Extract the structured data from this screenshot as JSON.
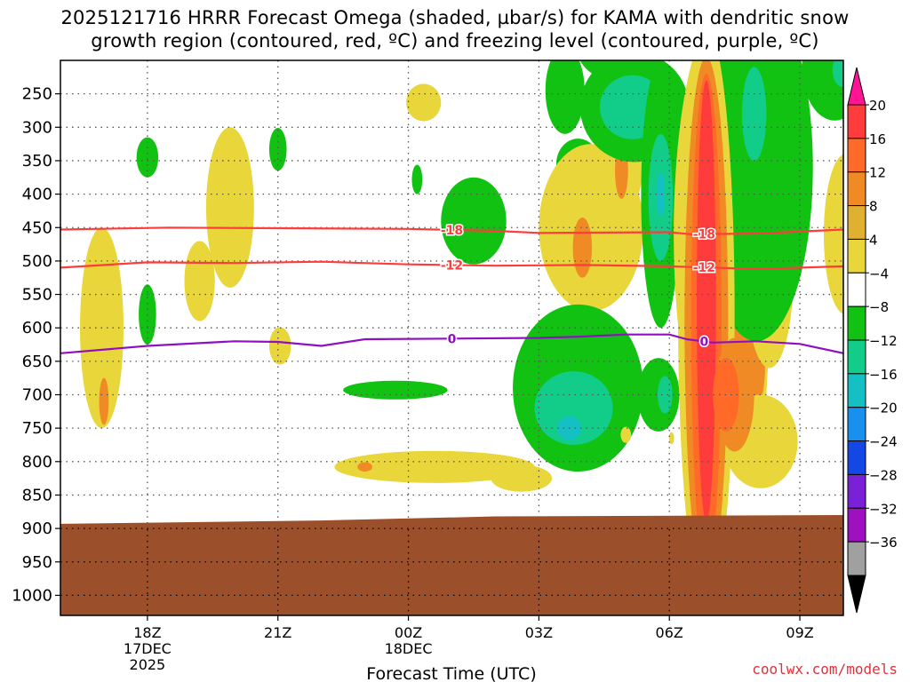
{
  "chart_data": {
    "type": "contour",
    "title_line1": "2025121716 HRRR Forecast Omega (shaded, µbar/s) for KAMA with dendritic snow",
    "title_line2": "growth region (contoured, red, ºC) and freezing level (contoured, purple, ºC)",
    "xlabel": "Forecast Time (UTC)",
    "ylabel": "",
    "credit": "coolwx.com/models",
    "x_range_hours": [
      -2.0,
      16.0
    ],
    "x_ticks": [
      {
        "hour": 0,
        "lines": [
          "18Z",
          "17DEC",
          "2025"
        ]
      },
      {
        "hour": 3,
        "lines": [
          "21Z"
        ]
      },
      {
        "hour": 6,
        "lines": [
          "00Z",
          "18DEC"
        ]
      },
      {
        "hour": 9,
        "lines": [
          "03Z"
        ]
      },
      {
        "hour": 12,
        "lines": [
          "06Z"
        ]
      },
      {
        "hour": 15,
        "lines": [
          "09Z"
        ]
      }
    ],
    "y_range_mb": [
      200,
      1030
    ],
    "y_ticks": [
      250,
      300,
      350,
      400,
      450,
      500,
      550,
      600,
      650,
      700,
      750,
      800,
      850,
      900,
      950,
      1000
    ],
    "ground_level_mb": [
      [
        -2.0,
        893
      ],
      [
        4.0,
        888
      ],
      [
        8.0,
        882
      ],
      [
        16.0,
        880
      ]
    ],
    "colorbar": {
      "labels": [
        "20",
        "16",
        "12",
        "8",
        "4",
        "−4",
        "−8",
        "−12",
        "−16",
        "−20",
        "−24",
        "−28",
        "−32",
        "−36"
      ],
      "colors_top_to_bottom": [
        "#ff1493",
        "#ff3c3c",
        "#ff6a28",
        "#f08a24",
        "#e0b030",
        "#e8d63a",
        "#ffffff",
        "#12c212",
        "#12cd8a",
        "#14c0c4",
        "#1a90ee",
        "#1448e6",
        "#7a20d6",
        "#9e10c0",
        "#a0a0a0",
        "#000000"
      ]
    },
    "contours": [
      {
        "name": "dendritic-top",
        "label": "-18",
        "color": "#ff3c3c",
        "points": [
          [
            -2.0,
            453
          ],
          [
            0.5,
            450
          ],
          [
            3,
            451
          ],
          [
            6,
            452
          ],
          [
            8,
            455
          ],
          [
            9,
            458
          ],
          [
            12,
            457
          ],
          [
            12.5,
            460
          ],
          [
            14,
            459
          ],
          [
            16,
            453
          ]
        ]
      },
      {
        "name": "dendritic-bottom",
        "label": "-12",
        "color": "#ff3c3c",
        "points": [
          [
            -2.0,
            510
          ],
          [
            0,
            502
          ],
          [
            2,
            503
          ],
          [
            4,
            501
          ],
          [
            6,
            505
          ],
          [
            8,
            507
          ],
          [
            10,
            506
          ],
          [
            12,
            508
          ],
          [
            14,
            512
          ],
          [
            16,
            508
          ]
        ]
      },
      {
        "name": "freezing-level",
        "label": "0",
        "color": "#9010c0",
        "points": [
          [
            -2.0,
            638
          ],
          [
            0,
            627
          ],
          [
            2,
            620
          ],
          [
            3,
            621
          ],
          [
            4,
            627
          ],
          [
            5,
            617
          ],
          [
            7,
            616
          ],
          [
            9,
            615
          ],
          [
            10,
            613
          ],
          [
            11,
            610
          ],
          [
            12,
            610
          ],
          [
            12.4,
            617
          ],
          [
            13,
            622
          ],
          [
            14,
            620
          ],
          [
            15,
            624
          ],
          [
            16,
            638
          ]
        ]
      }
    ],
    "omega_regions": [
      {
        "v": 4,
        "cx": -1.05,
        "cy": 600,
        "rx": 0.5,
        "ry": 150
      },
      {
        "v": 8,
        "cx": -1.0,
        "cy": 710,
        "rx": 0.11,
        "ry": 35
      },
      {
        "v": 4,
        "cx": 1.9,
        "cy": 420,
        "rx": 0.55,
        "ry": 120
      },
      {
        "v": 4,
        "cx": 1.2,
        "cy": 530,
        "rx": 0.35,
        "ry": 60
      },
      {
        "v": -4,
        "cx": 0.0,
        "cy": 345,
        "rx": 0.25,
        "ry": 30
      },
      {
        "v": -4,
        "cx": 0.0,
        "cy": 580,
        "rx": 0.2,
        "ry": 45
      },
      {
        "v": -4,
        "cx": 3.0,
        "cy": 333,
        "rx": 0.2,
        "ry": 32
      },
      {
        "v": -4,
        "cx": 6.2,
        "cy": 378,
        "rx": 0.12,
        "ry": 22
      },
      {
        "v": 4,
        "cx": 3.05,
        "cy": 627,
        "rx": 0.25,
        "ry": 28
      },
      {
        "v": 4,
        "cx": 6.35,
        "cy": 263,
        "rx": 0.4,
        "ry": 28
      },
      {
        "v": -4,
        "cx": 5.7,
        "cy": 693,
        "rx": 1.2,
        "ry": 14
      },
      {
        "v": 4,
        "cx": 6.6,
        "cy": 808,
        "rx": 2.3,
        "ry": 24
      },
      {
        "v": 4,
        "cx": 8.6,
        "cy": 825,
        "rx": 0.7,
        "ry": 20
      },
      {
        "v": 8,
        "cx": 5.0,
        "cy": 808,
        "rx": 0.17,
        "ry": 7
      },
      {
        "v": -4,
        "cx": 9.6,
        "cy": 245,
        "rx": 0.45,
        "ry": 65
      },
      {
        "v": -4,
        "cx": 10.5,
        "cy": 150,
        "rx": 0.75,
        "ry": 75
      },
      {
        "v": -4,
        "cx": 7.5,
        "cy": 440,
        "rx": 0.75,
        "ry": 65
      },
      {
        "v": -4,
        "cx": 9.9,
        "cy": 355,
        "rx": 0.5,
        "ry": 38
      },
      {
        "v": -8,
        "cx": 9.9,
        "cy": 355,
        "rx": 0.12,
        "ry": 16
      },
      {
        "v": 4,
        "cx": 10.2,
        "cy": 450,
        "rx": 1.2,
        "ry": 125
      },
      {
        "v": 4,
        "cx": 10.9,
        "cy": 345,
        "rx": 0.5,
        "ry": 90
      },
      {
        "v": 8,
        "cx": 10.9,
        "cy": 365,
        "rx": 0.15,
        "ry": 42
      },
      {
        "v": 8,
        "cx": 10.0,
        "cy": 480,
        "rx": 0.22,
        "ry": 45
      },
      {
        "v": -4,
        "cx": 9.9,
        "cy": 690,
        "rx": 1.5,
        "ry": 125
      },
      {
        "v": -8,
        "cx": 9.8,
        "cy": 720,
        "rx": 0.9,
        "ry": 55
      },
      {
        "v": -12,
        "cx": 9.7,
        "cy": 750,
        "rx": 0.28,
        "ry": 18
      },
      {
        "v": -4,
        "cx": 11.2,
        "cy": 270,
        "rx": 1.25,
        "ry": 82
      },
      {
        "v": -8,
        "cx": 11.15,
        "cy": 270,
        "rx": 0.75,
        "ry": 48
      },
      {
        "v": -4,
        "cx": 11.8,
        "cy": 400,
        "rx": 0.45,
        "ry": 200
      },
      {
        "v": -8,
        "cx": 11.8,
        "cy": 405,
        "rx": 0.28,
        "ry": 95
      },
      {
        "v": -12,
        "cx": 11.8,
        "cy": 400,
        "rx": 0.1,
        "ry": 32
      },
      {
        "v": -4,
        "cx": 11.75,
        "cy": 700,
        "rx": 0.48,
        "ry": 55
      },
      {
        "v": -8,
        "cx": 11.9,
        "cy": 700,
        "rx": 0.17,
        "ry": 28
      },
      {
        "v": 4,
        "cx": 11.0,
        "cy": 760,
        "rx": 0.12,
        "ry": 12
      },
      {
        "v": 4,
        "cx": 13.9,
        "cy": 540,
        "rx": 0.4,
        "ry": 280
      },
      {
        "v": 4,
        "cx": 13.3,
        "cy": 460,
        "rx": 1.2,
        "ry": 340
      },
      {
        "v": 8,
        "cx": 13.6,
        "cy": 660,
        "rx": 0.6,
        "ry": 90
      },
      {
        "v": 4,
        "cx": 14.1,
        "cy": 770,
        "rx": 0.85,
        "ry": 70
      },
      {
        "v": 4,
        "cx": 14.3,
        "cy": 520,
        "rx": 0.55,
        "ry": 140
      },
      {
        "v": -4,
        "cx": 14.0,
        "cy": 360,
        "rx": 1.3,
        "ry": 260
      },
      {
        "v": -8,
        "cx": 13.95,
        "cy": 280,
        "rx": 0.28,
        "ry": 70
      },
      {
        "v": -4,
        "cx": 15.8,
        "cy": 210,
        "rx": 0.75,
        "ry": 80
      },
      {
        "v": -8,
        "cx": 16.0,
        "cy": 215,
        "rx": 0.25,
        "ry": 25
      },
      {
        "v": 4,
        "cx": 16.05,
        "cy": 460,
        "rx": 0.5,
        "ry": 120
      },
      {
        "v": 8,
        "cx": 16.2,
        "cy": 470,
        "rx": 0.15,
        "ry": 45
      },
      {
        "v": 4,
        "cx": 12.85,
        "cy": 580,
        "rx": 0.65,
        "ry": 430
      },
      {
        "v": 8,
        "cx": 12.85,
        "cy": 590,
        "rx": 0.5,
        "ry": 395
      },
      {
        "v": 12,
        "cx": 12.85,
        "cy": 590,
        "rx": 0.35,
        "ry": 370
      },
      {
        "v": 16,
        "cx": 12.85,
        "cy": 560,
        "rx": 0.22,
        "ry": 330
      },
      {
        "v": 8,
        "cx": 13.5,
        "cy": 700,
        "rx": 0.45,
        "ry": 85
      },
      {
        "v": 12,
        "cx": 13.3,
        "cy": 700,
        "rx": 0.3,
        "ry": 55
      },
      {
        "v": 20,
        "cx": 12.85,
        "cy": 560,
        "rx": 0.08,
        "ry": 280
      },
      {
        "v": 4,
        "cx": 12.05,
        "cy": 765,
        "rx": 0.06,
        "ry": 9
      }
    ]
  }
}
